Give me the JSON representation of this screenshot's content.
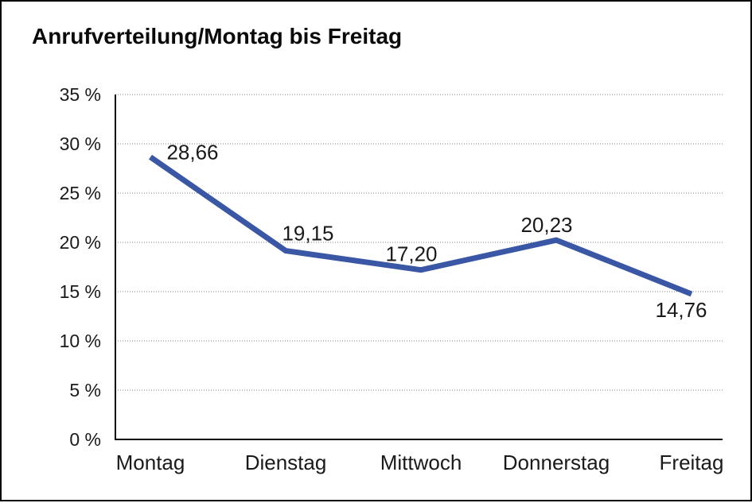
{
  "title": "Anrufverteilung/Montag bis Freitag",
  "chart_data": {
    "type": "line",
    "title": "Anrufverteilung/Montag bis Freitag",
    "categories": [
      "Montag",
      "Dienstag",
      "Mittwoch",
      "Donnerstag",
      "Freitag"
    ],
    "values": [
      28.66,
      19.15,
      17.2,
      20.23,
      14.76
    ],
    "data_labels": [
      "28,66",
      "19,15",
      "17,20",
      "20,23",
      "14,76"
    ],
    "data_label_placement": [
      "above-right",
      "above",
      "above",
      "above",
      "below"
    ],
    "xlabel": "",
    "ylabel": "",
    "ylim": [
      0,
      35
    ],
    "y_tick_step": 5,
    "y_tick_labels": [
      "0 %",
      "5 %",
      "10 %",
      "15 %",
      "20 %",
      "25 %",
      "30 %",
      "35 %"
    ],
    "grid": "horizontal-dotted",
    "legend": "none",
    "line_color": "#3A57A5",
    "grid_color": "#858585",
    "axis_color": "#000000",
    "text_color": "#1a1a1a"
  }
}
